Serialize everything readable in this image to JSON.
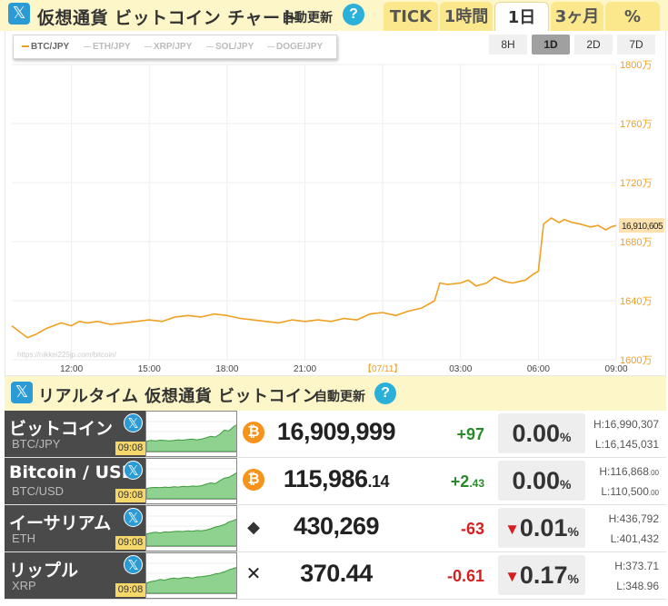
{
  "header": {
    "title": "仮想通貨 ビットコイン チャート",
    "auto_update": "自動更新",
    "help": "?",
    "tabs": [
      {
        "label": "TICK",
        "active": false
      },
      {
        "label": "1時間",
        "active": false
      },
      {
        "label": "1日",
        "active": true
      },
      {
        "label": "3ヶ月",
        "active": false
      },
      {
        "label": "%",
        "active": false
      }
    ]
  },
  "chart": {
    "legend": [
      {
        "label": "BTC/JPY",
        "active": true
      },
      {
        "label": "ETH/JPY",
        "active": false
      },
      {
        "label": "XRP/JPY",
        "active": false
      },
      {
        "label": "SOL/JPY",
        "active": false
      },
      {
        "label": "DOGE/JPY",
        "active": false
      }
    ],
    "ranges": [
      {
        "label": "8H",
        "active": false
      },
      {
        "label": "1D",
        "active": true
      },
      {
        "label": "2D",
        "active": false
      },
      {
        "label": "7D",
        "active": false
      }
    ],
    "watermark": "https://nikkei225jp.com/bitcoin/",
    "current_label": "16,910,605",
    "line_color": "#f0a020"
  },
  "chart_data": {
    "type": "line",
    "x_ticks": [
      "12:00",
      "15:00",
      "18:00",
      "21:00",
      "【07/11】",
      "03:00",
      "06:00",
      "09:00"
    ],
    "y_ticks": [
      "1800万",
      "1760万",
      "1720万",
      "1680万",
      "1640万",
      "1600万"
    ],
    "ylim": [
      16000000,
      18000000
    ],
    "x_range_hours": [
      9.7,
      33.0
    ],
    "grid": true,
    "series": [
      {
        "values": [
          [
            9.7,
            16230000
          ],
          [
            10.0,
            16190000
          ],
          [
            10.3,
            16150000
          ],
          [
            10.6,
            16170000
          ],
          [
            11.0,
            16210000
          ],
          [
            11.3,
            16230000
          ],
          [
            11.6,
            16250000
          ],
          [
            12.0,
            16230000
          ],
          [
            12.3,
            16260000
          ],
          [
            12.6,
            16250000
          ],
          [
            13.0,
            16260000
          ],
          [
            13.5,
            16240000
          ],
          [
            14.0,
            16250000
          ],
          [
            14.5,
            16260000
          ],
          [
            15.0,
            16270000
          ],
          [
            15.5,
            16260000
          ],
          [
            16.0,
            16290000
          ],
          [
            16.5,
            16300000
          ],
          [
            17.0,
            16290000
          ],
          [
            17.5,
            16310000
          ],
          [
            18.0,
            16300000
          ],
          [
            18.5,
            16280000
          ],
          [
            19.0,
            16270000
          ],
          [
            19.5,
            16260000
          ],
          [
            20.0,
            16250000
          ],
          [
            20.5,
            16270000
          ],
          [
            21.0,
            16260000
          ],
          [
            21.5,
            16270000
          ],
          [
            22.0,
            16260000
          ],
          [
            22.5,
            16280000
          ],
          [
            23.0,
            16270000
          ],
          [
            23.5,
            16310000
          ],
          [
            24.0,
            16320000
          ],
          [
            24.5,
            16300000
          ],
          [
            25.0,
            16330000
          ],
          [
            25.5,
            16350000
          ],
          [
            26.0,
            16400000
          ],
          [
            26.2,
            16520000
          ],
          [
            26.5,
            16510000
          ],
          [
            27.0,
            16520000
          ],
          [
            27.3,
            16540000
          ],
          [
            27.6,
            16500000
          ],
          [
            28.0,
            16520000
          ],
          [
            28.3,
            16560000
          ],
          [
            28.7,
            16530000
          ],
          [
            29.0,
            16520000
          ],
          [
            29.5,
            16540000
          ],
          [
            29.8,
            16580000
          ],
          [
            30.0,
            16600000
          ],
          [
            30.2,
            16920000
          ],
          [
            30.5,
            16960000
          ],
          [
            30.8,
            16930000
          ],
          [
            31.0,
            16950000
          ],
          [
            31.3,
            16930000
          ],
          [
            31.6,
            16920000
          ],
          [
            32.0,
            16900000
          ],
          [
            32.3,
            16910000
          ],
          [
            32.6,
            16880000
          ],
          [
            32.8,
            16900000
          ],
          [
            33.0,
            16910000
          ]
        ]
      }
    ]
  },
  "realtime": {
    "title": "リアルタイム 仮想通貨 ビットコイン",
    "auto_update": "自動更新",
    "help": "?"
  },
  "tickers": [
    {
      "name": "ビットコイン",
      "symbol": "BTC/JPY",
      "time": "09:08",
      "coin": "btc",
      "coin_glyph": "₿",
      "price_main": "16,909,999",
      "price_sub": "",
      "chg_main": "+97",
      "chg_sub": "",
      "dir": "up",
      "pct": "0.00",
      "pct_unit": "%",
      "arrow": "",
      "high_main": "H:16,990,307",
      "high_sub": "",
      "low_main": "L:16,145,031",
      "low_sub": ""
    },
    {
      "name": "Bitcoin / USD",
      "symbol": "BTC/USD",
      "time": "09:08",
      "coin": "btc",
      "coin_glyph": "₿",
      "price_main": "115,986",
      "price_sub": ".14",
      "chg_main": "+2",
      "chg_sub": ".43",
      "dir": "up",
      "pct": "0.00",
      "pct_unit": "%",
      "arrow": "",
      "high_main": "H:116,868",
      "high_sub": ".00",
      "low_main": "L:110,500",
      "low_sub": ".00"
    },
    {
      "name": "イーサリアム",
      "symbol": "ETH",
      "time": "09:08",
      "coin": "eth",
      "coin_glyph": "◆",
      "price_main": "430,269",
      "price_sub": "",
      "chg_main": "-63",
      "chg_sub": "",
      "dir": "down",
      "pct": "0.01",
      "pct_unit": "%",
      "arrow": "▼",
      "high_main": "H:436,792",
      "high_sub": "",
      "low_main": "L:401,432",
      "low_sub": ""
    },
    {
      "name": "リップル",
      "symbol": "XRP",
      "time": "09:08",
      "coin": "xrp",
      "coin_glyph": "✕",
      "price_main": "370.44",
      "price_sub": "",
      "chg_main": "-0.61",
      "chg_sub": "",
      "dir": "down",
      "pct": "0.17",
      "pct_unit": "%",
      "arrow": "▼",
      "high_main": "H:373.71",
      "high_sub": "",
      "low_main": "L:348.96",
      "low_sub": ""
    }
  ]
}
